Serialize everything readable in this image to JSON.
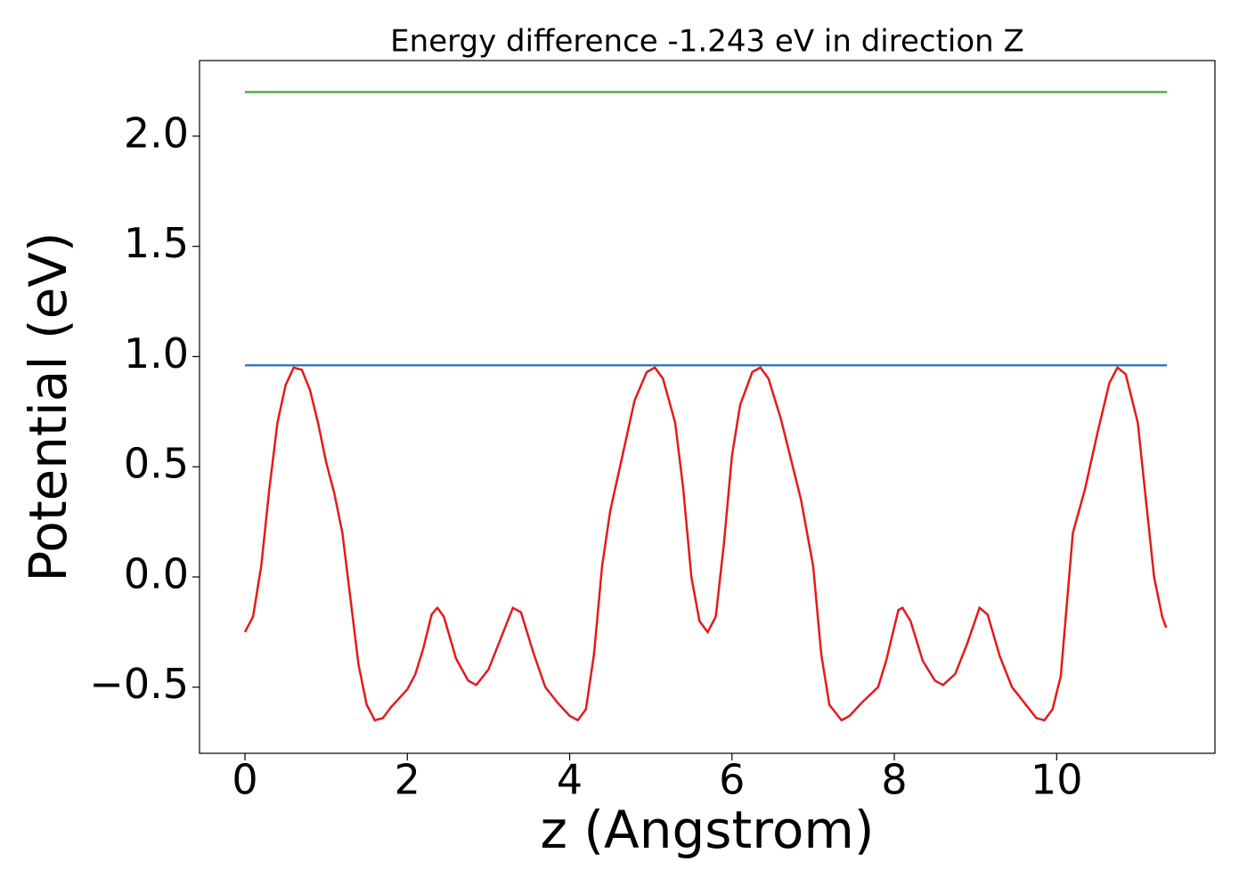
{
  "chart_data": {
    "type": "line",
    "title": "Energy difference -1.243 eV in direction Z",
    "xlabel": "z (Angstrom)",
    "ylabel": "Potential (eV)",
    "xlim": [
      -0.56,
      11.95
    ],
    "ylim": [
      -0.8,
      2.343
    ],
    "xticks": [
      0,
      2,
      4,
      6,
      8,
      10
    ],
    "yticks": [
      {
        "value": -0.5,
        "label": "−0.5"
      },
      {
        "value": 0,
        "label": "0.0"
      },
      0.5,
      {
        "value": 1,
        "label": "1.0"
      },
      1.5,
      {
        "value": 2,
        "label": "2.0"
      }
    ],
    "series": [
      {
        "color": "#e41a1c",
        "x": [
          0,
          0.1,
          0.2,
          0.3,
          0.4,
          0.5,
          0.6,
          0.7,
          0.8,
          0.9,
          1.0,
          1.1,
          1.2,
          1.3,
          1.4,
          1.5,
          1.6,
          1.7,
          1.8,
          2.0,
          2.1,
          2.2,
          2.3,
          2.37,
          2.45,
          2.6,
          2.75,
          2.85,
          3.0,
          3.15,
          3.3,
          3.4,
          3.55,
          3.7,
          3.85,
          4.0,
          4.1,
          4.2,
          4.3,
          4.4,
          4.5,
          4.65,
          4.8,
          4.95,
          5.05,
          5.15,
          5.3,
          5.4,
          5.5,
          5.6,
          5.7,
          5.8,
          5.9,
          6.0,
          6.1,
          6.25,
          6.35,
          6.45,
          6.6,
          6.75,
          6.85,
          7.0,
          7.1,
          7.2,
          7.35,
          7.45,
          7.6,
          7.8,
          7.9,
          8.05,
          8.1,
          8.2,
          8.35,
          8.5,
          8.6,
          8.75,
          8.9,
          9.05,
          9.15,
          9.3,
          9.45,
          9.6,
          9.75,
          9.85,
          9.95,
          10.05,
          10.2,
          10.35,
          10.5,
          10.65,
          10.75,
          10.85,
          11.0,
          11.1,
          11.2,
          11.3,
          11.35
        ],
        "values": [
          -0.25,
          -0.18,
          0.05,
          0.4,
          0.7,
          0.87,
          0.95,
          0.94,
          0.85,
          0.7,
          0.52,
          0.38,
          0.2,
          -0.1,
          -0.4,
          -0.58,
          -0.65,
          -0.64,
          -0.59,
          -0.51,
          -0.44,
          -0.32,
          -0.17,
          -0.14,
          -0.18,
          -0.37,
          -0.47,
          -0.49,
          -0.42,
          -0.28,
          -0.14,
          -0.16,
          -0.34,
          -0.5,
          -0.57,
          -0.63,
          -0.65,
          -0.6,
          -0.35,
          0.05,
          0.3,
          0.55,
          0.8,
          0.93,
          0.95,
          0.9,
          0.7,
          0.4,
          0.0,
          -0.2,
          -0.25,
          -0.18,
          0.15,
          0.55,
          0.78,
          0.93,
          0.95,
          0.9,
          0.72,
          0.5,
          0.35,
          0.05,
          -0.35,
          -0.58,
          -0.65,
          -0.63,
          -0.57,
          -0.5,
          -0.38,
          -0.15,
          -0.14,
          -0.2,
          -0.38,
          -0.47,
          -0.49,
          -0.44,
          -0.3,
          -0.14,
          -0.17,
          -0.36,
          -0.5,
          -0.57,
          -0.64,
          -0.65,
          -0.6,
          -0.45,
          0.2,
          0.4,
          0.65,
          0.88,
          0.95,
          0.92,
          0.7,
          0.35,
          0.0,
          -0.18,
          -0.23
        ]
      },
      {
        "color": "#377eb8",
        "x": [
          0,
          11.36
        ],
        "values": [
          0.96,
          0.96
        ]
      },
      {
        "color": "#4daf4a",
        "x": [
          0,
          11.36
        ],
        "values": [
          2.2,
          2.2
        ]
      }
    ]
  }
}
